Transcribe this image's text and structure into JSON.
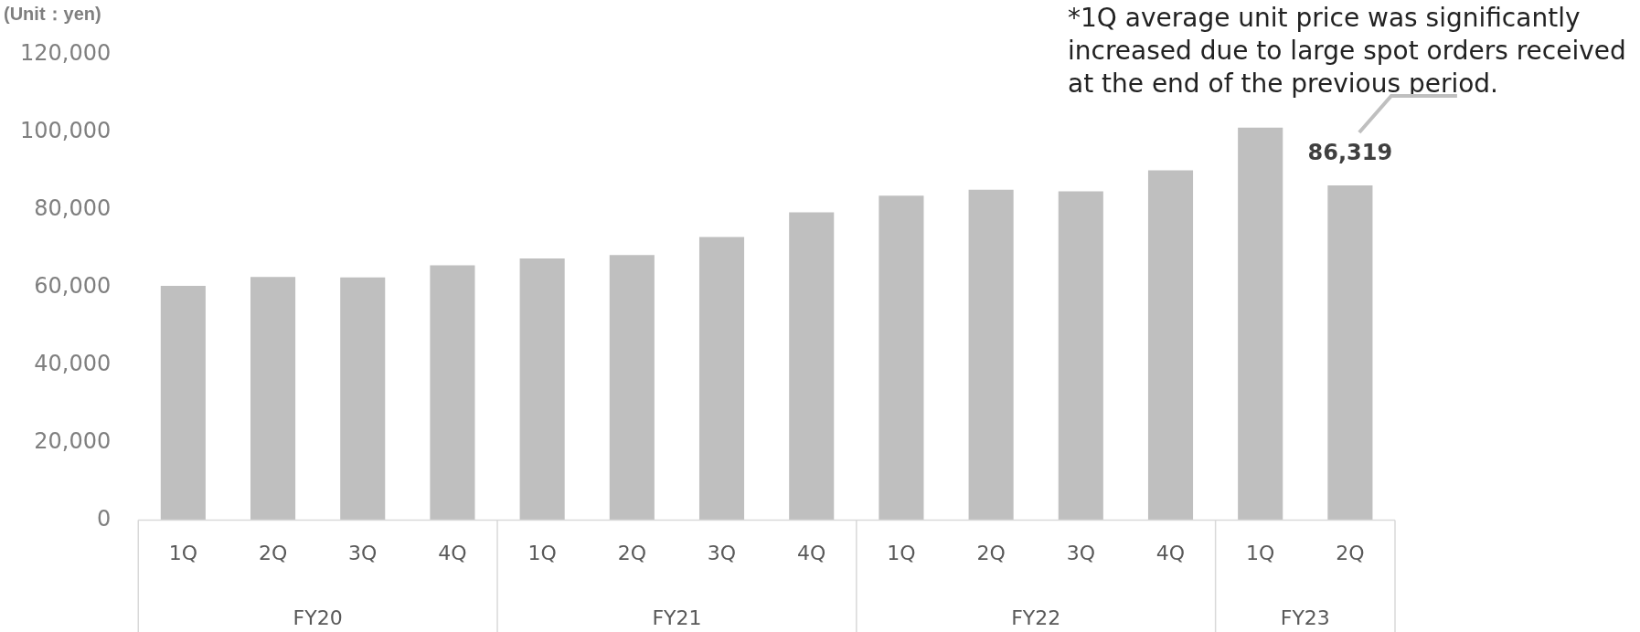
{
  "chart_data": {
    "type": "bar",
    "ylabel": "(Unit：yen)",
    "categories": [
      "1Q",
      "2Q",
      "3Q",
      "4Q",
      "1Q",
      "2Q",
      "3Q",
      "4Q",
      "1Q",
      "2Q",
      "3Q",
      "4Q",
      "1Q",
      "2Q"
    ],
    "values": [
      60400,
      62700,
      62600,
      65700,
      67500,
      68400,
      73000,
      79400,
      83700,
      85200,
      84800,
      90200,
      101200,
      86319
    ],
    "value_labels": [
      null,
      null,
      null,
      null,
      null,
      null,
      null,
      null,
      null,
      null,
      null,
      null,
      null,
      "86,319"
    ],
    "color": "#bfbfbf",
    "ylim": [
      0,
      120000
    ],
    "yticks": [
      {
        "value": 0,
        "label": "0"
      },
      {
        "value": 20000,
        "label": "20,000"
      },
      {
        "value": 40000,
        "label": "40,000"
      },
      {
        "value": 60000,
        "label": "60,000"
      },
      {
        "value": 80000,
        "label": "80,000"
      },
      {
        "value": 100000,
        "label": "100,000"
      },
      {
        "value": 120000,
        "label": "120,000"
      }
    ],
    "grid": false,
    "legend": false,
    "annotations": [
      "FY20",
      "FY21",
      "FY22",
      "FY23",
      "*1Q average unit price was significantly increased due to large spot orders received at the end of the previous period."
    ]
  }
}
